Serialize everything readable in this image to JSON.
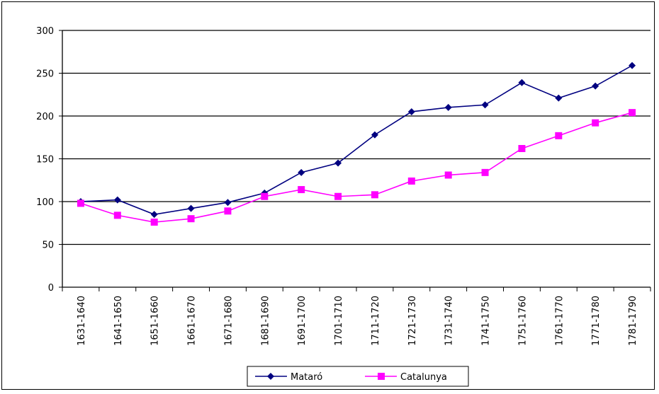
{
  "chart_data": {
    "type": "line",
    "title": "",
    "xlabel": "",
    "ylabel": "",
    "categories": [
      "1631-1640",
      "1641-1650",
      "1651-1660",
      "1661-1670",
      "1671-1680",
      "1681-1690",
      "1691-1700",
      "1701-1710",
      "1711-1720",
      "1721-1730",
      "1731-1740",
      "1741-1750",
      "1751-1760",
      "1761-1770",
      "1771-1780",
      "1781-1790"
    ],
    "ylim": [
      0,
      300
    ],
    "yticks": [
      0,
      50,
      100,
      150,
      200,
      250,
      300
    ],
    "grid": "horizontal",
    "legend_position": "bottom",
    "series": [
      {
        "name": "Mataró",
        "color": "#000080",
        "marker": "diamond",
        "values": [
          100,
          102,
          85,
          92,
          99,
          110,
          134,
          145,
          178,
          205,
          210,
          213,
          239,
          221,
          235,
          259
        ]
      },
      {
        "name": "Catalunya",
        "color": "#ff00ff",
        "marker": "square",
        "values": [
          98,
          84,
          76,
          80,
          89,
          106,
          114,
          106,
          108,
          124,
          131,
          134,
          162,
          177,
          192,
          204
        ]
      }
    ]
  }
}
